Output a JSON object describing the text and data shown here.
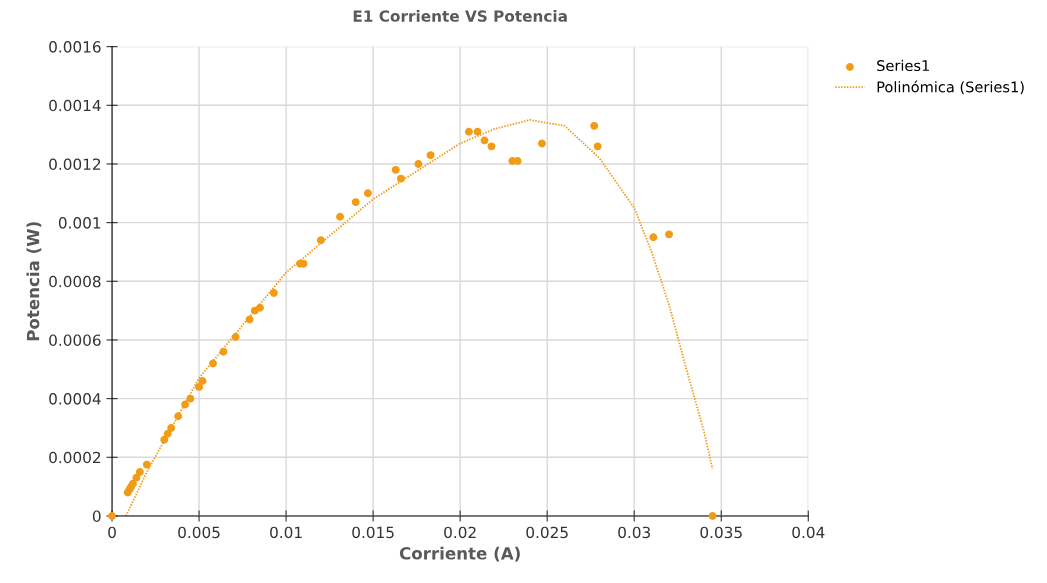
{
  "chart_data": {
    "type": "scatter",
    "title": "E1 Corriente VS Potencia",
    "xlabel": "Corriente (A)",
    "ylabel": "Potencia (W)",
    "xlim": [
      0,
      0.04
    ],
    "xticks": [
      0,
      0.005,
      0.01,
      0.015,
      0.02,
      0.025,
      0.03,
      0.035,
      0.04
    ],
    "ylim": [
      0,
      0.0016
    ],
    "yticks": [
      0,
      0.0002,
      0.0004,
      0.0006,
      0.0008,
      0.001,
      0.0012,
      0.0014,
      0.0016
    ],
    "grid": true,
    "legend": "top right",
    "series": [
      {
        "name": "Series1",
        "color": "#f29b15",
        "marker": "circle",
        "x": [
          0,
          0.0009,
          0.001,
          0.0011,
          0.0012,
          0.0014,
          0.0016,
          0.002,
          0.003,
          0.0032,
          0.0034,
          0.0038,
          0.0042,
          0.0045,
          0.005,
          0.0052,
          0.0058,
          0.0064,
          0.0071,
          0.0079,
          0.0082,
          0.0085,
          0.0093,
          0.0108,
          0.011,
          0.012,
          0.0131,
          0.014,
          0.0147,
          0.0163,
          0.0166,
          0.0176,
          0.0183,
          0.0205,
          0.021,
          0.0214,
          0.0218,
          0.023,
          0.0233,
          0.0247,
          0.0277,
          0.0279,
          0.0311,
          0.032,
          0.0345
        ],
        "values": [
          0,
          8e-05,
          9e-05,
          0.0001,
          0.00011,
          0.00013,
          0.00015,
          0.000175,
          0.00026,
          0.00028,
          0.0003,
          0.00034,
          0.00038,
          0.0004,
          0.00044,
          0.00046,
          0.00052,
          0.00056,
          0.00061,
          0.00067,
          0.0007,
          0.00071,
          0.00076,
          0.00086,
          0.00086,
          0.00094,
          0.00102,
          0.00107,
          0.0011,
          0.00118,
          0.00115,
          0.0012,
          0.00123,
          0.00131,
          0.00131,
          0.00128,
          0.00126,
          0.00121,
          0.00121,
          0.00127,
          0.00133,
          0.00126,
          0.00095,
          0.00096,
          0
        ]
      },
      {
        "name": "Polinómica (Series1)",
        "type": "line",
        "color": "#f29b15",
        "line_style": "dotted",
        "x": [
          0.0008,
          0.002,
          0.005,
          0.01,
          0.015,
          0.02,
          0.022,
          0.024,
          0.026,
          0.028,
          0.03,
          0.031,
          0.032,
          0.033,
          0.034,
          0.0345
        ],
        "values": [
          0,
          0.00015,
          0.00047,
          0.00083,
          0.00108,
          0.00127,
          0.00132,
          0.00135,
          0.00133,
          0.00122,
          0.00105,
          0.0009,
          0.00072,
          0.0005,
          0.00029,
          0.00016
        ]
      }
    ]
  }
}
